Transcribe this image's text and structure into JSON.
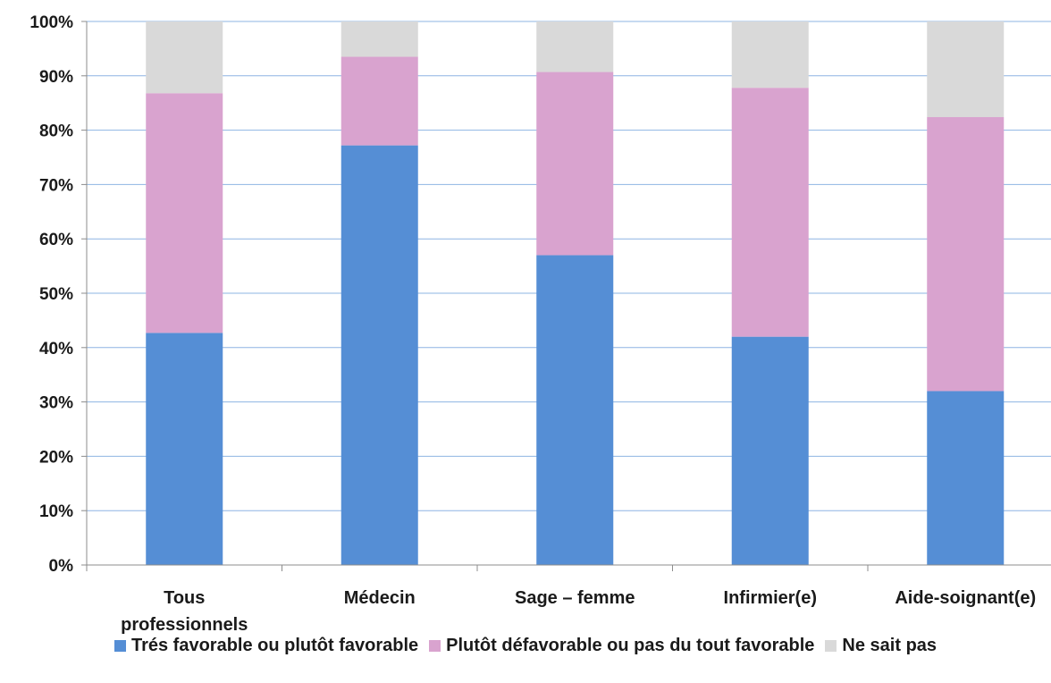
{
  "chart_data": {
    "type": "bar",
    "stacked": true,
    "categories": [
      "Tous|professionnels",
      "Médecin",
      "Sage – femme",
      "Infirmier(e)",
      "Aide-soignant(e)"
    ],
    "series": [
      {
        "name": "Trés favorable ou plutôt favorable",
        "color": "#558ed5",
        "values": [
          42.7,
          77.2,
          57.0,
          42.0,
          32.0
        ]
      },
      {
        "name": "Plutôt défavorable ou pas du tout favorable",
        "color": "#d9a3cf",
        "values": [
          44.1,
          16.3,
          33.7,
          45.8,
          50.4
        ]
      },
      {
        "name": "Ne sait pas",
        "color": "#d9d9d9",
        "values": [
          13.2,
          6.5,
          9.3,
          12.2,
          17.6
        ]
      }
    ],
    "yticks": [
      "0%",
      "10%",
      "20%",
      "30%",
      "40%",
      "50%",
      "60%",
      "70%",
      "80%",
      "90%",
      "100%"
    ],
    "ylim": [
      0,
      100
    ],
    "grid": true,
    "legend_position": "bottom"
  }
}
